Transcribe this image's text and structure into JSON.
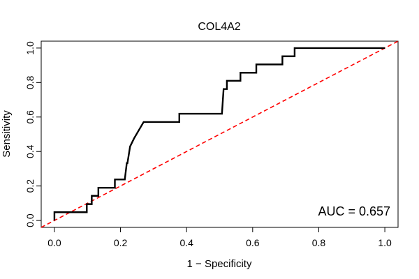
{
  "chart_data": {
    "type": "line",
    "title": "COL4A2",
    "xlabel": "1 − Specificity",
    "ylabel": "Sensitivity",
    "xlim": [
      -0.04,
      1.04
    ],
    "ylim": [
      -0.04,
      1.04
    ],
    "x_ticks": [
      0.0,
      0.2,
      0.4,
      0.6,
      0.8,
      1.0
    ],
    "x_tick_labels": [
      "0.0",
      "0.2",
      "0.4",
      "0.6",
      "0.8",
      "1.0"
    ],
    "y_ticks": [
      0.0,
      0.2,
      0.4,
      0.6,
      0.8,
      1.0
    ],
    "y_tick_labels": [
      "0.0",
      "0.2",
      "0.4",
      "0.6",
      "0.8",
      "1.0"
    ],
    "annotation": "AUC = 0.657",
    "grid": false,
    "series": [
      {
        "style": "solid",
        "color": "#000000",
        "x": [
          0.0,
          0.0,
          0.098,
          0.098,
          0.113,
          0.113,
          0.133,
          0.133,
          0.183,
          0.183,
          0.213,
          0.219,
          0.221,
          0.229,
          0.229,
          0.241,
          0.241,
          0.27,
          0.27,
          0.378,
          0.378,
          0.415,
          0.415,
          0.507,
          0.512,
          0.522,
          0.522,
          0.563,
          0.563,
          0.611,
          0.611,
          0.69,
          0.69,
          0.727,
          0.727,
          1.0
        ],
        "y": [
          0.0,
          0.048,
          0.048,
          0.095,
          0.095,
          0.143,
          0.143,
          0.19,
          0.19,
          0.238,
          0.238,
          0.333,
          0.333,
          0.429,
          0.429,
          0.476,
          0.476,
          0.571,
          0.571,
          0.571,
          0.619,
          0.619,
          0.619,
          0.619,
          0.762,
          0.762,
          0.81,
          0.81,
          0.857,
          0.857,
          0.905,
          0.905,
          0.952,
          0.952,
          1.0,
          1.0
        ]
      },
      {
        "style": "dashed",
        "color": "#ff0000",
        "x": [
          -0.04,
          1.04
        ],
        "y": [
          -0.04,
          1.04
        ]
      }
    ]
  }
}
